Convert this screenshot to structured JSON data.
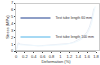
{
  "chart_data": {
    "type": "line",
    "x_label": "Deformation (%)",
    "y_label": "Stress (MPa)",
    "xlim": [
      0,
      1.8
    ],
    "xticks": [
      0,
      0.2,
      0.4,
      0.6,
      0.8,
      1,
      1.2,
      1.4,
      1.6,
      1.8
    ],
    "ylim": [
      0,
      7
    ],
    "yticks": [
      0,
      1,
      2,
      3,
      4,
      5,
      6,
      7
    ],
    "grid": false,
    "legend": "top",
    "series": [
      {
        "name": "Test tube length 60 mm",
        "color": "#1f3f8f",
        "x": [
          0,
          0.05,
          0.1,
          0.2,
          0.3,
          0.4,
          0.5,
          0.6,
          0.7,
          0.8,
          0.9,
          1.0,
          1.1,
          1.2,
          1.3,
          1.4,
          1.5,
          1.6,
          1.65,
          1.7,
          1.75
        ],
        "values": [
          0,
          1.2,
          1.0,
          0.9,
          0.8,
          0.8,
          0.75,
          0.8,
          0.8,
          0.85,
          0.9,
          0.95,
          1.0,
          1.1,
          1.3,
          1.6,
          2.0,
          2.8,
          3.5,
          4.6,
          6.2
        ]
      },
      {
        "name": "Test tube length 100 mm",
        "color": "#4fb3e8",
        "x": [
          0,
          0.05,
          0.1,
          0.2,
          0.3,
          0.4,
          0.5,
          0.6,
          0.7,
          0.8,
          0.9,
          1.0,
          1.1,
          1.2,
          1.3,
          1.4,
          1.5,
          1.6,
          1.65,
          1.7,
          1.78
        ],
        "values": [
          0,
          1.0,
          0.9,
          0.85,
          0.8,
          0.75,
          0.75,
          0.75,
          0.8,
          0.8,
          0.85,
          0.9,
          0.95,
          1.05,
          1.2,
          1.45,
          1.8,
          2.5,
          3.1,
          4.0,
          6.5
        ]
      }
    ]
  }
}
